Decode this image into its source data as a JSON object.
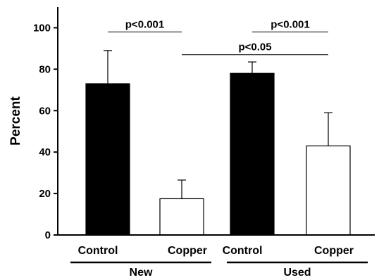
{
  "chart_data": {
    "type": "bar",
    "title": "",
    "xlabel": "",
    "ylabel": "Percent",
    "ylim": [
      0,
      110
    ],
    "yticks": [
      0,
      20,
      40,
      60,
      80,
      100
    ],
    "grid": false,
    "legend": "none",
    "categories": [
      "Control",
      "Copper",
      "Control",
      "Copper"
    ],
    "values": [
      73,
      17.5,
      78,
      43
    ],
    "error_plus": [
      16,
      9,
      5.5,
      16
    ],
    "bar_fill": [
      "#000000",
      "#ffffff",
      "#000000",
      "#ffffff"
    ],
    "groups": [
      {
        "label": "New",
        "members": [
          0,
          1
        ]
      },
      {
        "label": "Used",
        "members": [
          2,
          3
        ]
      }
    ],
    "annotations": [
      {
        "text": "p<0.001",
        "from": 0,
        "to": 1,
        "y": 98
      },
      {
        "text": "p<0.001",
        "from": 2,
        "to": 3,
        "y": 98
      },
      {
        "text": "p<0.05",
        "from": 1,
        "to": 3,
        "y": 87
      }
    ]
  },
  "colors": {
    "axis": "#000000",
    "control": "#000000",
    "copper": "#ffffff"
  }
}
